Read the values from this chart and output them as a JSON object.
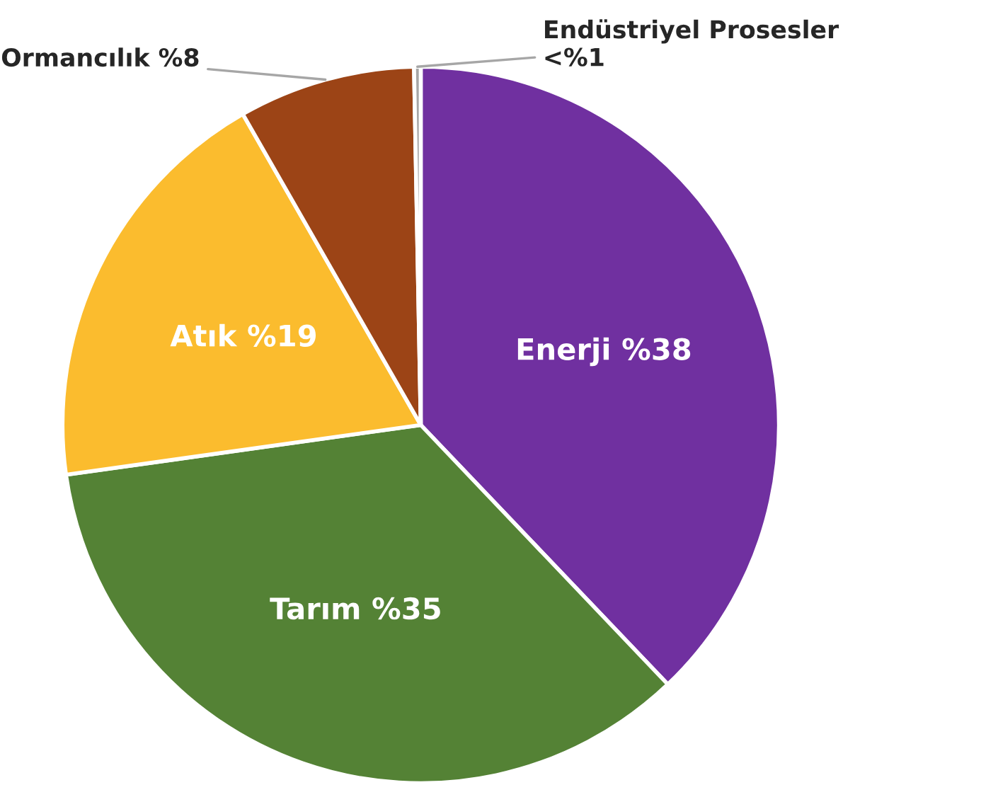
{
  "chart_data": {
    "type": "pie",
    "categories": [
      "Enerji",
      "Tarım",
      "Atık",
      "Ormancılık",
      "Endüstriyel Prosesler"
    ],
    "values": [
      38,
      35,
      19,
      8,
      0.3
    ],
    "value_labels": [
      "%38",
      "%35",
      "%19",
      "%8",
      "<%1"
    ],
    "colors": [
      "#7030a0",
      "#548235",
      "#fbbc2e",
      "#9c4416",
      "#a6a6a6"
    ],
    "legend": false
  }
}
